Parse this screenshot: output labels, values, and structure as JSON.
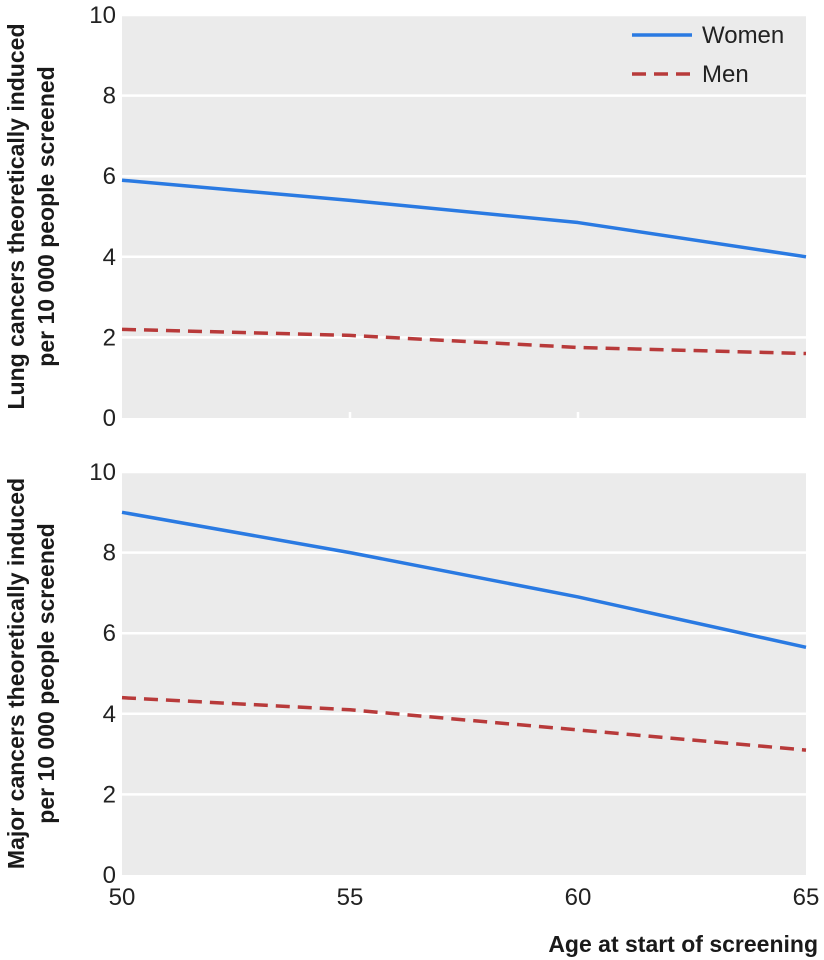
{
  "chart_data": [
    {
      "type": "line",
      "title": "",
      "xlabel": "",
      "ylabel": "Lung cancers theoretically induced per 10 000 people screened",
      "ylabel_lines": [
        "Lung cancers theoretically induced",
        "per 10 000 people screened"
      ],
      "x": [
        50,
        55,
        60,
        65
      ],
      "xlim": [
        50,
        65
      ],
      "ylim": [
        0,
        10
      ],
      "yticks": [
        "0",
        "2",
        "4",
        "6",
        "8",
        "10"
      ],
      "xticks": [],
      "grid": true,
      "legend_position": "top-right",
      "series": [
        {
          "name": "Women",
          "color": "#2a7ae2",
          "style": "solid",
          "values": [
            5.9,
            5.4,
            4.85,
            4.0
          ]
        },
        {
          "name": "Men",
          "color": "#b83a3a",
          "style": "dashed",
          "values": [
            2.2,
            2.05,
            1.75,
            1.6
          ]
        }
      ]
    },
    {
      "type": "line",
      "title": "",
      "xlabel": "Age at start of screening",
      "ylabel": "Major cancers theoretically induced per 10 000 people screened",
      "ylabel_lines": [
        "Major cancers theoretically induced",
        "per 10 000 people screened"
      ],
      "x": [
        50,
        55,
        60,
        65
      ],
      "xlim": [
        50,
        65
      ],
      "ylim": [
        0,
        10
      ],
      "yticks": [
        "0",
        "2",
        "4",
        "6",
        "8",
        "10"
      ],
      "xticks": [
        "50",
        "55",
        "60",
        "65"
      ],
      "grid": true,
      "legend_position": "none",
      "series": [
        {
          "name": "Women",
          "color": "#2a7ae2",
          "style": "solid",
          "values": [
            9.0,
            8.0,
            6.9,
            5.65
          ]
        },
        {
          "name": "Men",
          "color": "#b83a3a",
          "style": "dashed",
          "values": [
            4.4,
            4.1,
            3.6,
            3.1
          ]
        }
      ]
    }
  ]
}
